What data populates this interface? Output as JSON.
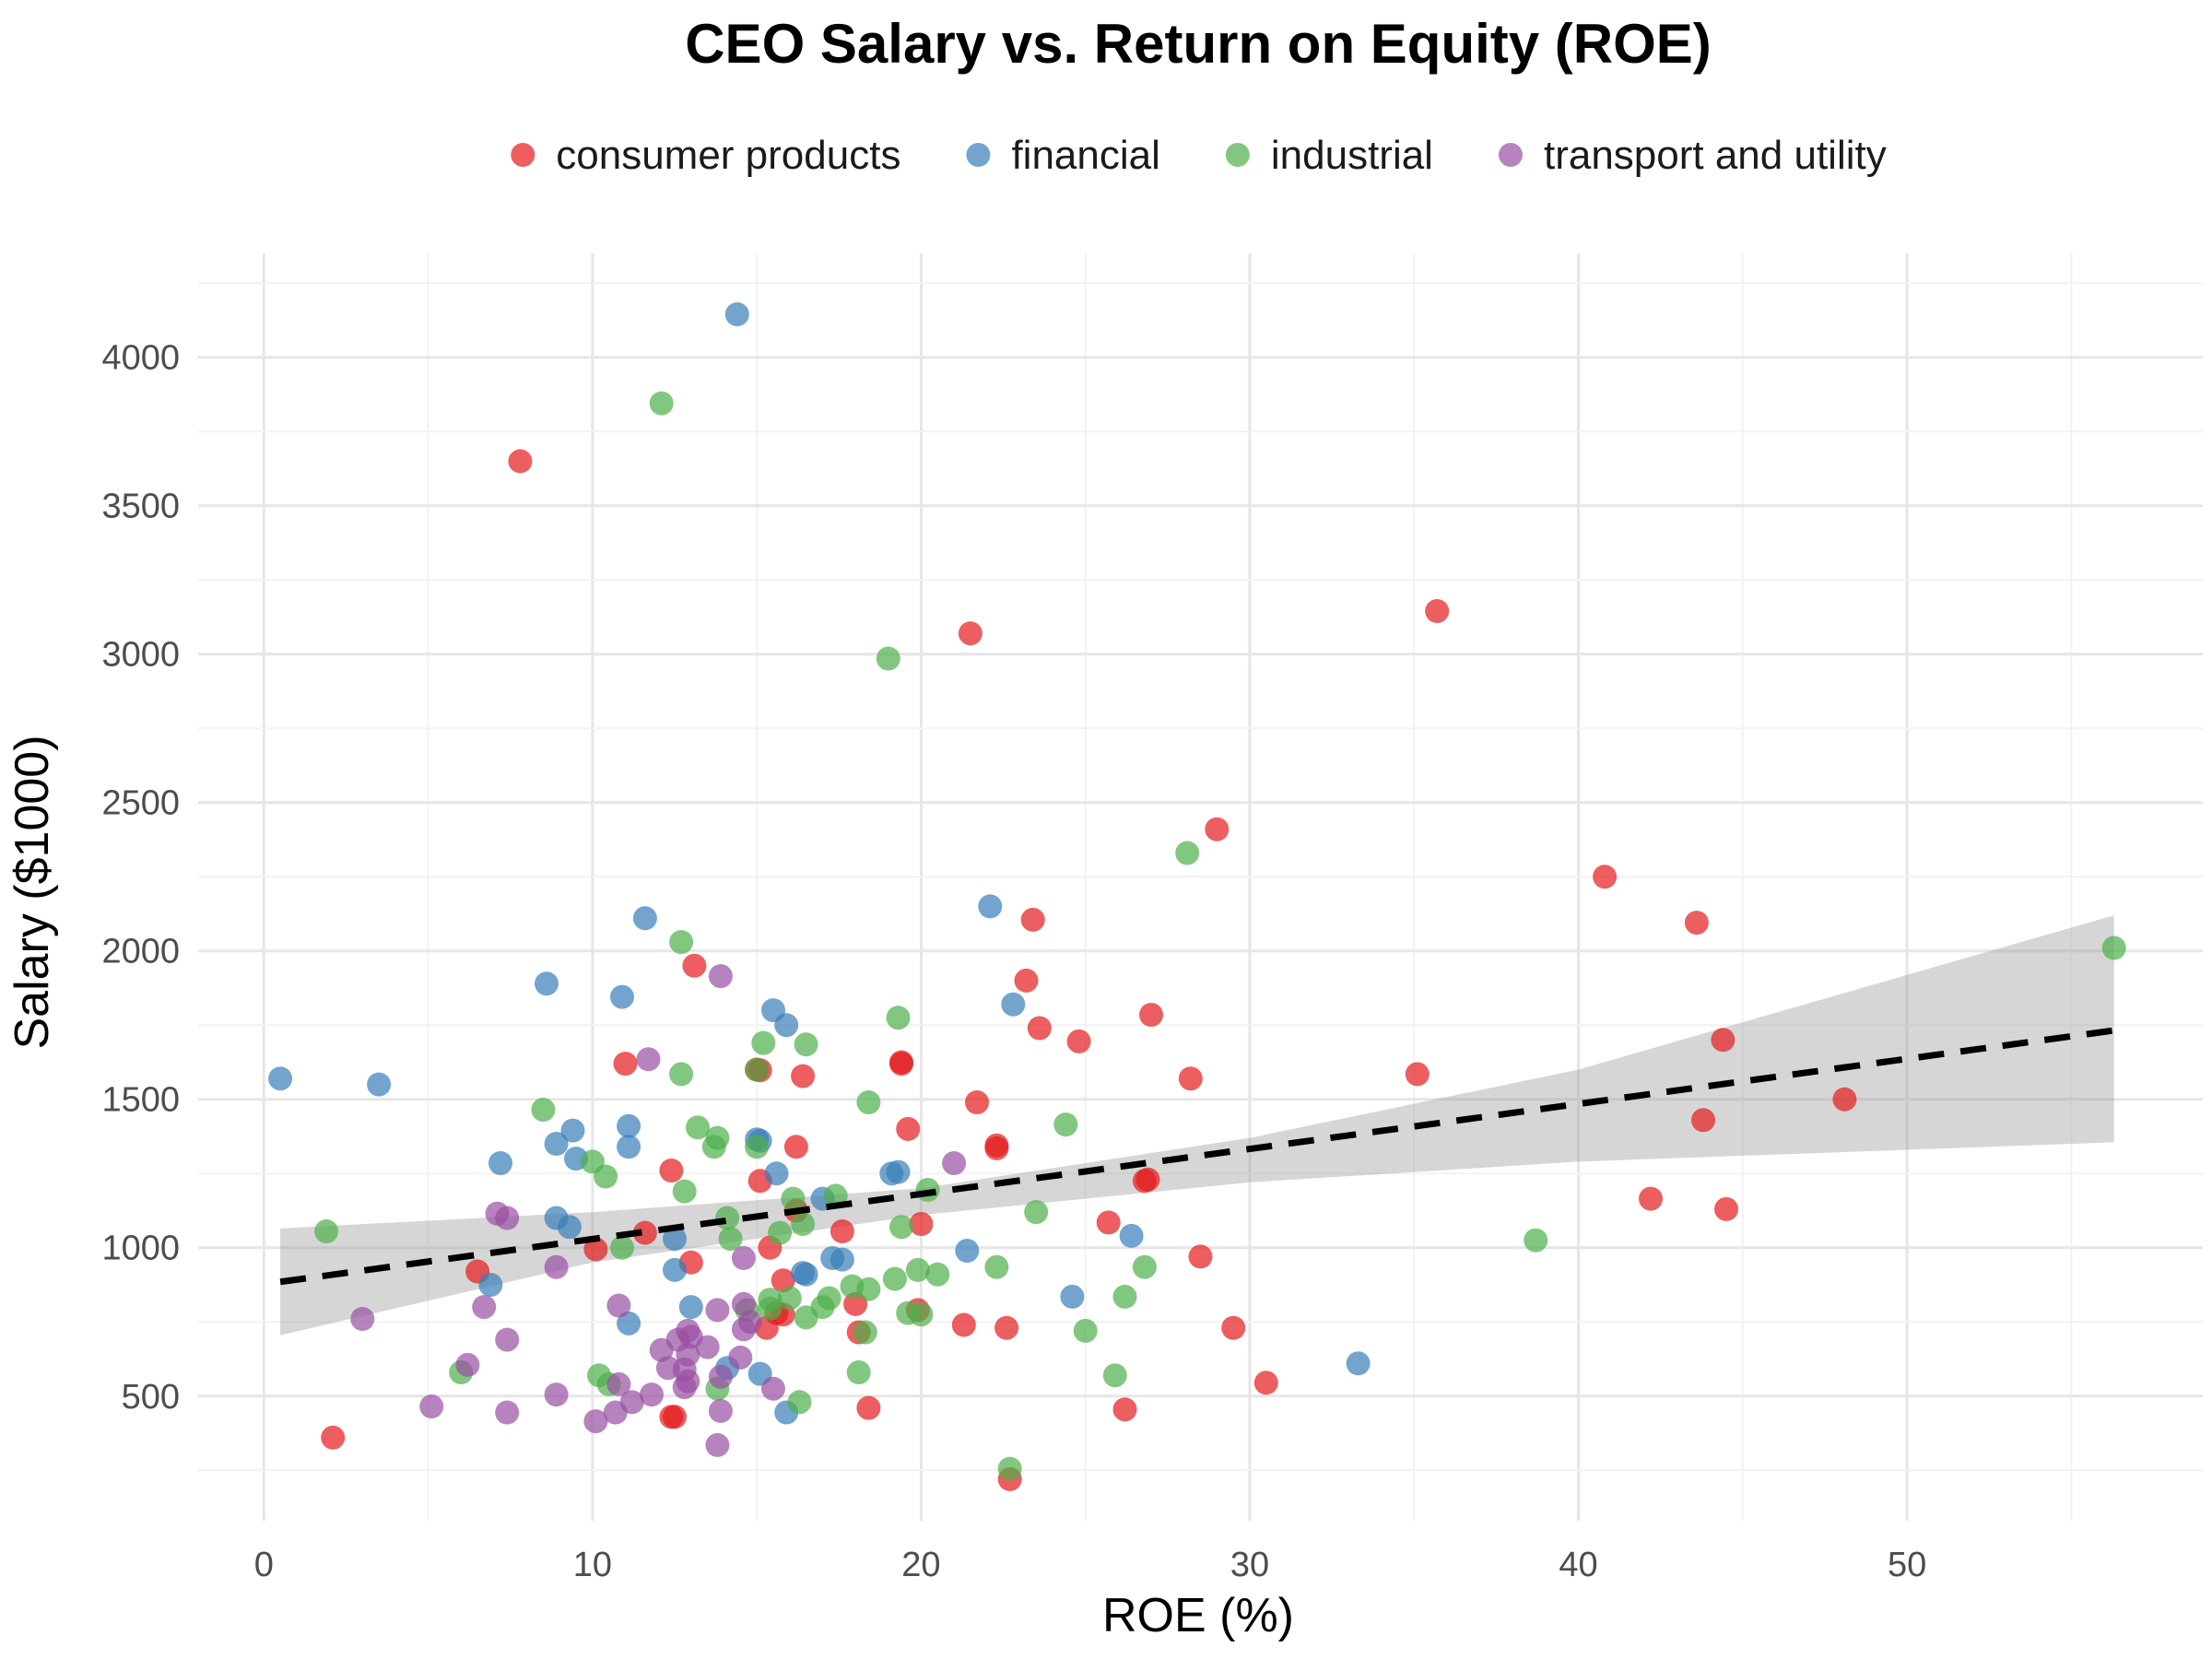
{
  "chart_data": {
    "type": "scatter",
    "title": "CEO Salary vs. Return on Equity (ROE)",
    "xlabel": "ROE (%)",
    "ylabel": "Salary ($1000)",
    "xlim": [
      -2,
      59
    ],
    "ylim": [
      80,
      4350
    ],
    "xticks": [
      0,
      10,
      20,
      30,
      40,
      50
    ],
    "yticks": [
      500,
      1000,
      1500,
      2000,
      2500,
      3000,
      3500,
      4000
    ],
    "grid": true,
    "legend_position": "top",
    "trend_line": {
      "style": "dashed",
      "x": [
        0.5,
        56.3
      ],
      "y": [
        885,
        1732
      ]
    },
    "confidence_band": {
      "x": [
        0.5,
        10,
        20,
        30,
        40,
        56.3
      ],
      "lower": [
        705,
        950,
        1110,
        1220,
        1290,
        1355
      ],
      "upper": [
        1065,
        1120,
        1200,
        1370,
        1600,
        2120
      ]
    },
    "series": [
      {
        "name": "consumer products",
        "color": "#e41a1c",
        "points": [
          [
            7.8,
            3650
          ],
          [
            21.5,
            3070
          ],
          [
            35.7,
            3145
          ],
          [
            29.0,
            2410
          ],
          [
            40.8,
            2250
          ],
          [
            43.6,
            2095
          ],
          [
            23.4,
            2105
          ],
          [
            13.1,
            1950
          ],
          [
            23.2,
            1900
          ],
          [
            27.0,
            1785
          ],
          [
            23.6,
            1740
          ],
          [
            24.8,
            1695
          ],
          [
            44.4,
            1700
          ],
          [
            11.0,
            1620
          ],
          [
            19.4,
            1625
          ],
          [
            19.4,
            1620
          ],
          [
            15.0,
            1600
          ],
          [
            15.1,
            1598
          ],
          [
            16.4,
            1578
          ],
          [
            28.2,
            1570
          ],
          [
            35.1,
            1585
          ],
          [
            21.7,
            1490
          ],
          [
            48.1,
            1500
          ],
          [
            19.6,
            1400
          ],
          [
            43.8,
            1430
          ],
          [
            16.2,
            1340
          ],
          [
            22.3,
            1345
          ],
          [
            22.3,
            1335
          ],
          [
            12.4,
            1260
          ],
          [
            15.1,
            1225
          ],
          [
            26.9,
            1230
          ],
          [
            26.8,
            1225
          ],
          [
            42.2,
            1165
          ],
          [
            44.5,
            1130
          ],
          [
            16.2,
            1125
          ],
          [
            20.0,
            1080
          ],
          [
            25.7,
            1085
          ],
          [
            17.6,
            1055
          ],
          [
            11.6,
            1050
          ],
          [
            10.1,
            995
          ],
          [
            15.4,
            1000
          ],
          [
            28.5,
            970
          ],
          [
            13.0,
            950
          ],
          [
            6.5,
            920
          ],
          [
            15.8,
            890
          ],
          [
            18.0,
            810
          ],
          [
            19.9,
            790
          ],
          [
            15.8,
            775
          ],
          [
            15.6,
            780
          ],
          [
            15.3,
            730
          ],
          [
            18.1,
            715
          ],
          [
            21.3,
            740
          ],
          [
            22.6,
            730
          ],
          [
            29.5,
            730
          ],
          [
            30.5,
            545
          ],
          [
            18.4,
            460
          ],
          [
            26.2,
            455
          ],
          [
            12.4,
            430
          ],
          [
            12.5,
            430
          ],
          [
            2.1,
            360
          ],
          [
            22.7,
            220
          ]
        ]
      },
      {
        "name": "financial",
        "color": "#377eb8",
        "points": [
          [
            14.4,
            4145
          ],
          [
            11.6,
            2110
          ],
          [
            22.1,
            2150
          ],
          [
            8.6,
            1890
          ],
          [
            10.9,
            1845
          ],
          [
            22.8,
            1820
          ],
          [
            15.5,
            1800
          ],
          [
            15.9,
            1750
          ],
          [
            0.5,
            1570
          ],
          [
            3.5,
            1550
          ],
          [
            11.1,
            1410
          ],
          [
            9.4,
            1395
          ],
          [
            15.0,
            1365
          ],
          [
            15.1,
            1360
          ],
          [
            8.9,
            1350
          ],
          [
            11.1,
            1340
          ],
          [
            9.5,
            1300
          ],
          [
            7.2,
            1285
          ],
          [
            19.1,
            1250
          ],
          [
            19.3,
            1255
          ],
          [
            15.6,
            1250
          ],
          [
            17.0,
            1165
          ],
          [
            8.9,
            1100
          ],
          [
            9.3,
            1070
          ],
          [
            26.4,
            1040
          ],
          [
            12.5,
            1030
          ],
          [
            21.4,
            990
          ],
          [
            17.3,
            965
          ],
          [
            17.6,
            960
          ],
          [
            16.4,
            915
          ],
          [
            16.5,
            910
          ],
          [
            12.5,
            925
          ],
          [
            6.9,
            875
          ],
          [
            24.6,
            835
          ],
          [
            13.0,
            800
          ],
          [
            11.1,
            745
          ],
          [
            14.1,
            595
          ],
          [
            15.1,
            575
          ],
          [
            33.3,
            610
          ],
          [
            15.9,
            445
          ]
        ]
      },
      {
        "name": "industrial",
        "color": "#4daf4a",
        "points": [
          [
            12.1,
            3845
          ],
          [
            19.0,
            2985
          ],
          [
            28.1,
            2330
          ],
          [
            12.7,
            2030
          ],
          [
            56.3,
            2010
          ],
          [
            19.3,
            1775
          ],
          [
            15.2,
            1690
          ],
          [
            16.5,
            1685
          ],
          [
            15.0,
            1600
          ],
          [
            12.7,
            1585
          ],
          [
            18.4,
            1490
          ],
          [
            8.5,
            1465
          ],
          [
            24.4,
            1415
          ],
          [
            13.2,
            1405
          ],
          [
            13.8,
            1370
          ],
          [
            13.7,
            1340
          ],
          [
            15.0,
            1340
          ],
          [
            10.0,
            1290
          ],
          [
            10.4,
            1240
          ],
          [
            12.8,
            1190
          ],
          [
            20.2,
            1195
          ],
          [
            17.4,
            1175
          ],
          [
            16.1,
            1165
          ],
          [
            23.5,
            1120
          ],
          [
            14.1,
            1100
          ],
          [
            16.4,
            1080
          ],
          [
            19.4,
            1070
          ],
          [
            15.7,
            1050
          ],
          [
            1.9,
            1055
          ],
          [
            14.2,
            1030
          ],
          [
            38.7,
            1025
          ],
          [
            10.9,
            1000
          ],
          [
            26.8,
            935
          ],
          [
            22.3,
            935
          ],
          [
            19.9,
            925
          ],
          [
            20.5,
            910
          ],
          [
            19.2,
            895
          ],
          [
            17.9,
            870
          ],
          [
            18.4,
            860
          ],
          [
            26.2,
            835
          ],
          [
            17.2,
            830
          ],
          [
            16.0,
            830
          ],
          [
            15.4,
            825
          ],
          [
            17.0,
            800
          ],
          [
            15.4,
            795
          ],
          [
            19.6,
            780
          ],
          [
            20.0,
            775
          ],
          [
            14.7,
            790
          ],
          [
            16.5,
            765
          ],
          [
            18.3,
            715
          ],
          [
            25.0,
            720
          ],
          [
            6.0,
            580
          ],
          [
            10.2,
            570
          ],
          [
            18.1,
            580
          ],
          [
            25.9,
            570
          ],
          [
            10.5,
            540
          ],
          [
            13.8,
            525
          ],
          [
            16.3,
            480
          ],
          [
            22.7,
            255
          ]
        ]
      },
      {
        "name": "transport and utility",
        "color": "#984ea3",
        "points": [
          [
            13.9,
            1915
          ],
          [
            11.7,
            1635
          ],
          [
            21.0,
            1285
          ],
          [
            7.1,
            1115
          ],
          [
            7.4,
            1100
          ],
          [
            14.6,
            965
          ],
          [
            8.9,
            935
          ],
          [
            6.7,
            800
          ],
          [
            10.8,
            805
          ],
          [
            14.6,
            810
          ],
          [
            13.8,
            790
          ],
          [
            3.0,
            760
          ],
          [
            14.8,
            750
          ],
          [
            14.6,
            725
          ],
          [
            12.9,
            720
          ],
          [
            13.0,
            700
          ],
          [
            12.6,
            690
          ],
          [
            7.4,
            690
          ],
          [
            13.5,
            665
          ],
          [
            12.1,
            655
          ],
          [
            12.9,
            640
          ],
          [
            14.5,
            630
          ],
          [
            6.2,
            605
          ],
          [
            12.3,
            595
          ],
          [
            12.8,
            590
          ],
          [
            13.9,
            565
          ],
          [
            12.9,
            550
          ],
          [
            10.8,
            540
          ],
          [
            12.8,
            530
          ],
          [
            15.5,
            525
          ],
          [
            11.8,
            505
          ],
          [
            8.9,
            505
          ],
          [
            11.2,
            480
          ],
          [
            5.1,
            465
          ],
          [
            13.9,
            450
          ],
          [
            7.4,
            445
          ],
          [
            10.7,
            445
          ],
          [
            10.1,
            415
          ],
          [
            13.8,
            335
          ]
        ]
      }
    ]
  }
}
